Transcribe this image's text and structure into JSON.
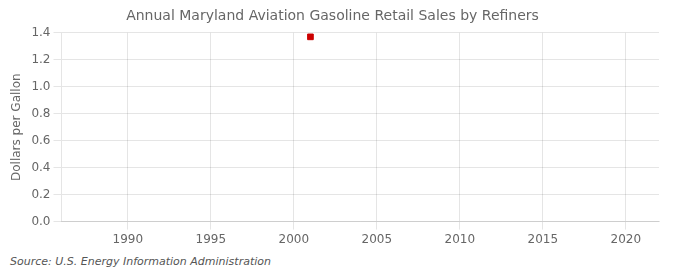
{
  "chart_data": {
    "type": "scatter",
    "title": "Annual Maryland Aviation Gasoline Retail Sales by Refiners",
    "ylabel": "Dollars per Gallon",
    "annotation": "Source: U.S. Energy Information Administration",
    "x": [
      2001
    ],
    "values": [
      1.37
    ],
    "color": "#cc0000",
    "marker": "square",
    "xlim": [
      1986,
      2022
    ],
    "ylim": [
      0.0,
      1.4
    ],
    "xticks": [
      1990,
      1995,
      2000,
      2005,
      2010,
      2015,
      2020
    ],
    "yticks": [
      {
        "value": 0.0,
        "label": "0.0"
      },
      0.2,
      0.4,
      0.6,
      0.8,
      {
        "value": 1.0,
        "label": "1.0"
      },
      1.2,
      1.4
    ],
    "grid": true
  }
}
